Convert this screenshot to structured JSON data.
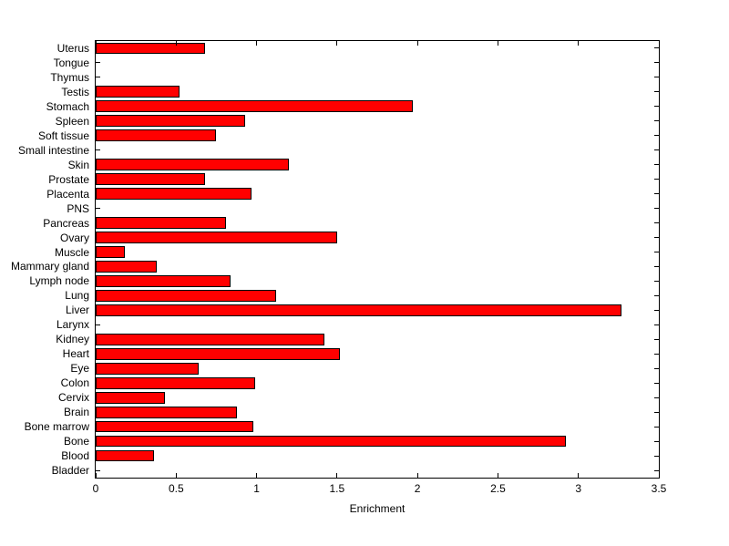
{
  "figure": {
    "background": "#ffffff"
  },
  "chart_data": {
    "type": "bar",
    "orientation": "horizontal",
    "title": "",
    "xlabel": "Enrichment",
    "ylabel": "",
    "xlim": [
      0,
      3.5
    ],
    "xticks": [
      0,
      0.5,
      1,
      1.5,
      2,
      2.5,
      3,
      3.5
    ],
    "xtick_labels": [
      "0",
      "0.5",
      "1",
      "1.5",
      "2",
      "2.5",
      "3",
      "3.5"
    ],
    "grid": false,
    "legend": false,
    "bar_color": "#ff0000",
    "bar_edge_color": "#000000",
    "category_order": "top-to-bottom",
    "categories": [
      "Uterus",
      "Tongue",
      "Thymus",
      "Testis",
      "Stomach",
      "Spleen",
      "Soft tissue",
      "Small intestine",
      "Skin",
      "Prostate",
      "Placenta",
      "PNS",
      "Pancreas",
      "Ovary",
      "Muscle",
      "Mammary gland",
      "Lymph node",
      "Lung",
      "Liver",
      "Larynx",
      "Kidney",
      "Heart",
      "Eye",
      "Colon",
      "Cervix",
      "Brain",
      "Bone marrow",
      "Bone",
      "Blood",
      "Bladder"
    ],
    "values": [
      0.68,
      0,
      0,
      0.52,
      1.97,
      0.93,
      0.75,
      0,
      1.2,
      0.68,
      0.97,
      0,
      0.81,
      1.5,
      0.18,
      0.38,
      0.84,
      1.12,
      3.27,
      0,
      1.42,
      1.52,
      0.64,
      0.99,
      0.43,
      0.88,
      0.98,
      2.92,
      0.36,
      0
    ]
  }
}
